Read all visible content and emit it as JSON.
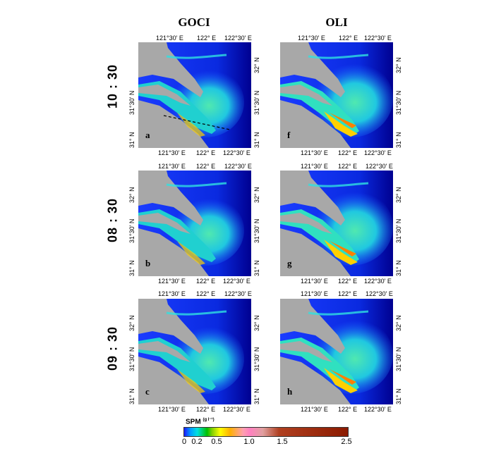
{
  "columns": {
    "left": "GOCI",
    "right": "OLI"
  },
  "rows": [
    {
      "time": "10 : 30",
      "left_label": "a",
      "right_label": "f"
    },
    {
      "time": "08 : 30",
      "left_label": "b",
      "right_label": "g"
    },
    {
      "time": "09 : 30",
      "left_label": "c",
      "right_label": "h"
    }
  ],
  "ticks": {
    "lon": [
      "121°30' E",
      "122° E",
      "122°30' E"
    ],
    "lat": [
      "31° N",
      "31°30' N",
      "32° N"
    ]
  },
  "colorbar": {
    "title": "SPM (g l⁻¹)",
    "title_main": "SPM",
    "title_unit": "(g l⁻¹)",
    "ticks": [
      "0",
      "0.2",
      "0.5",
      "1.0",
      "1.5",
      "2.5"
    ],
    "tick_values": [
      0,
      0.2,
      0.5,
      1.0,
      1.5,
      2.5
    ],
    "range": [
      0,
      2.5
    ]
  },
  "colors": {
    "land": "#a8a8a8",
    "ocean_deep": "#0000b0",
    "ocean_mid": "#1a40ff",
    "turbid": "#00d8c8",
    "plume": "#40e0b0",
    "high": "#ffd000"
  }
}
